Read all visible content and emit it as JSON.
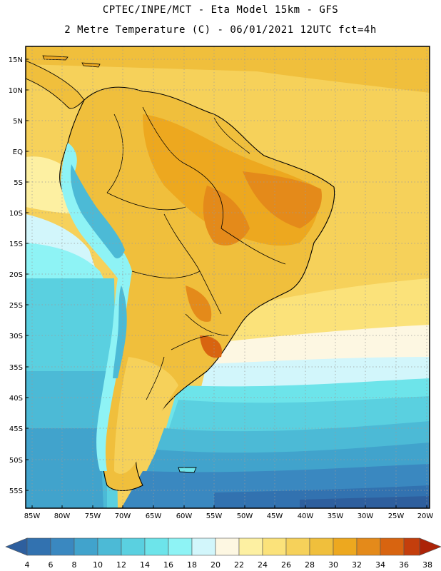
{
  "header": {
    "line1": "CPTEC/INPE/MCT -  Eta Model 15km - GFS",
    "line2": "2 Metre Temperature (C) - 06/01/2021 12UTC fct=4h"
  },
  "map": {
    "lat_labels": [
      "15N",
      "10N",
      "5N",
      "EQ",
      "5S",
      "10S",
      "15S",
      "20S",
      "25S",
      "30S",
      "35S",
      "40S",
      "45S",
      "50S",
      "55S"
    ],
    "lon_labels": [
      "85W",
      "80W",
      "75W",
      "70W",
      "65W",
      "60W",
      "55W",
      "50W",
      "45W",
      "40W",
      "35W",
      "30W",
      "25W",
      "20W"
    ]
  },
  "colorbar": {
    "labels": [
      "4",
      "6",
      "8",
      "10",
      "12",
      "14",
      "16",
      "18",
      "20",
      "22",
      "24",
      "26",
      "28",
      "30",
      "32",
      "34",
      "36",
      "38"
    ],
    "colors": [
      "#2e5f9e",
      "#3272b0",
      "#3a88c0",
      "#41a3cc",
      "#4cbad6",
      "#5ad0e0",
      "#6de4ea",
      "#8ef3f5",
      "#d2f6fb",
      "#fdf7e2",
      "#fdf0a2",
      "#fbe27a",
      "#f6d15a",
      "#f0bf3c",
      "#eda81f",
      "#e48a1a",
      "#d86410",
      "#c43e0c",
      "#ac2308"
    ]
  }
}
